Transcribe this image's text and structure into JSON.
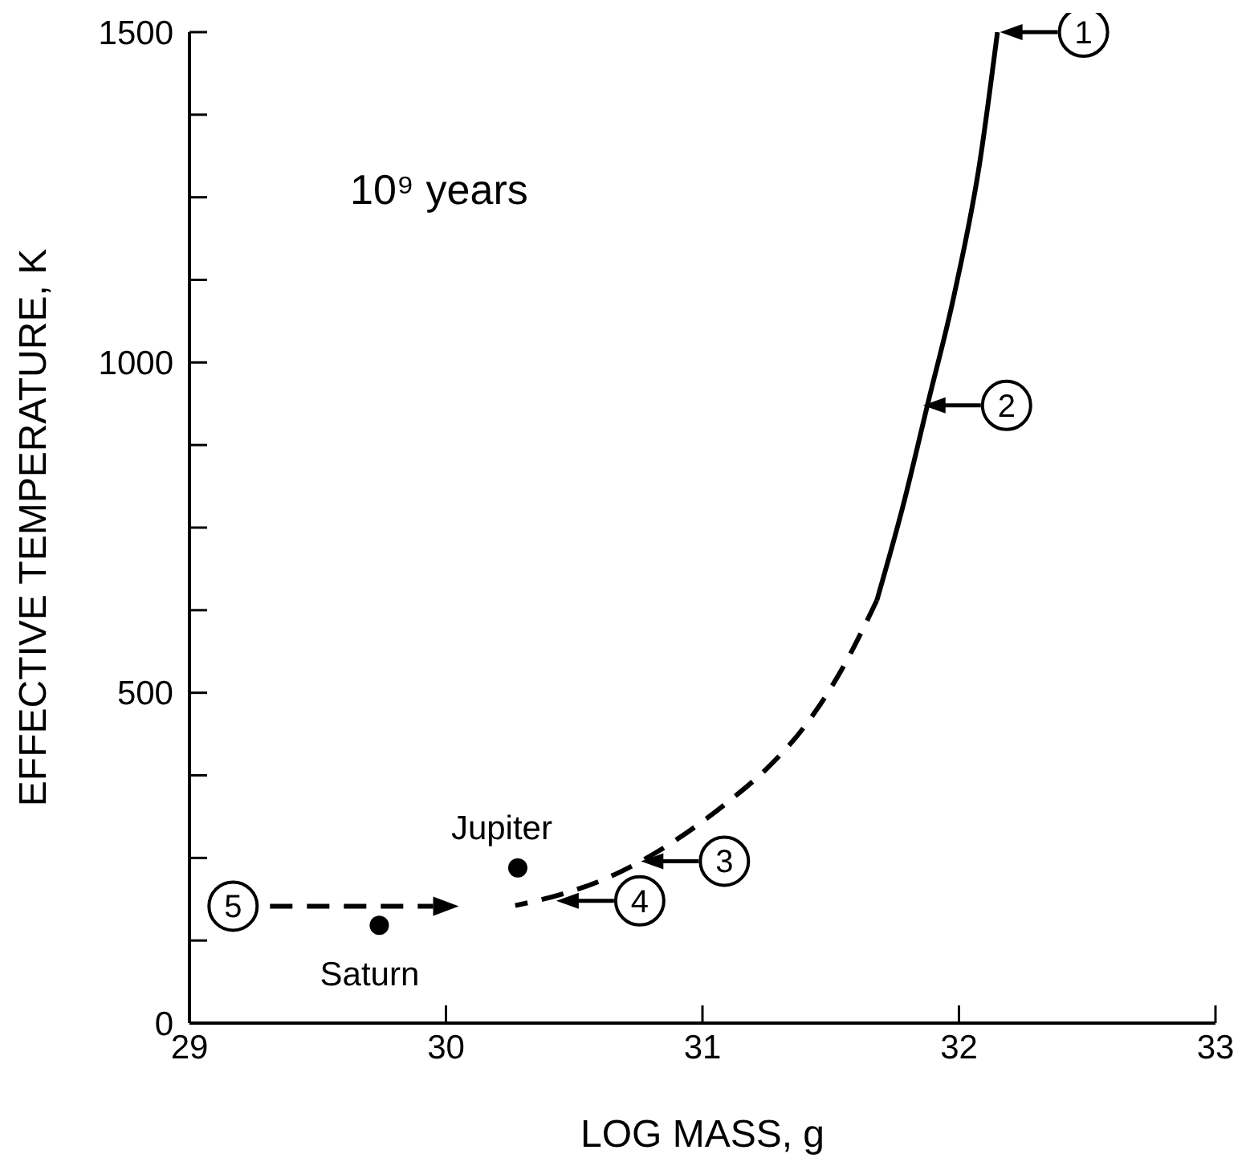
{
  "chart_data": {
    "type": "line",
    "xlabel": "LOG MASS, g",
    "ylabel": "EFFECTIVE TEMPERATURE, K",
    "xlim": [
      29,
      33
    ],
    "xticks": [
      29,
      30,
      31,
      32,
      33
    ],
    "ylim": [
      0,
      1500
    ],
    "yticks": [
      0,
      {
        "value": 125,
        "label": null
      },
      {
        "value": 250,
        "label": null
      },
      {
        "value": 375,
        "label": null
      },
      500,
      {
        "value": 625,
        "label": null
      },
      {
        "value": 750,
        "label": null
      },
      {
        "value": 875,
        "label": null
      },
      1000,
      {
        "value": 1125,
        "label": null
      },
      {
        "value": 1250,
        "label": null
      },
      {
        "value": 1375,
        "label": null
      },
      1500
    ],
    "grid": false,
    "legend": false,
    "series": [
      {
        "type": "line",
        "color": "#000000",
        "line_style": "solid",
        "x": [
          32.15,
          32.08,
          31.98,
          31.88,
          31.78,
          31.68
        ],
        "values": [
          1500,
          1300,
          1100,
          940,
          780,
          640
        ]
      },
      {
        "type": "line",
        "color": "#000000",
        "line_style": "dashed",
        "x": [
          31.68,
          31.55,
          31.4,
          31.25,
          31.1,
          30.9,
          30.76,
          30.6,
          30.45,
          30.27
        ],
        "values": [
          640,
          540,
          450,
          385,
          335,
          278,
          245,
          215,
          195,
          178
        ]
      },
      {
        "type": "line",
        "color": "#000000",
        "line_style": "dashed",
        "x": [
          29.17,
          29.95
        ],
        "values": [
          177,
          177
        ]
      },
      {
        "type": "scatter",
        "color": "#000000",
        "marker": "circle",
        "x": [
          30.28,
          29.74
        ],
        "values": [
          235,
          148
        ]
      }
    ],
    "annotations": [
      {
        "text": "10⁹ years"
      },
      {
        "text": "Jupiter",
        "x": 30.28,
        "y": 235
      },
      {
        "text": "Saturn",
        "x": 29.74,
        "y": 148
      },
      {
        "text": "1",
        "x": 32.16,
        "y": 1500
      },
      {
        "text": "2",
        "x": 31.86,
        "y": 935
      },
      {
        "text": "3",
        "x": 30.76,
        "y": 245
      },
      {
        "text": "4",
        "x": 30.43,
        "y": 185
      },
      {
        "text": "5",
        "x": 29.17,
        "y": 177
      }
    ]
  }
}
